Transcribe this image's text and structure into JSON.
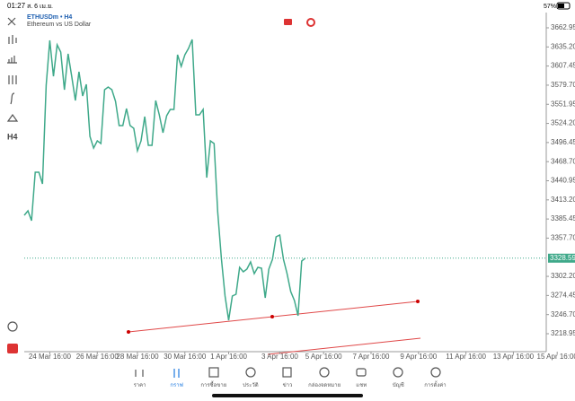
{
  "status_bar": {
    "time": "01:27",
    "date": "ส. 6 เม.ย.",
    "battery": "57%"
  },
  "chart_data": {
    "type": "line",
    "title": "ETHUSDm • H4",
    "subtitle": "Ethereum vs US Dollar",
    "series": [
      {
        "color": "#3fa98a",
        "values": [
          3390.8,
          3397.3,
          3383.0,
          3453.3,
          3453.3,
          3436.4,
          3579.6,
          3644.7,
          3592.6,
          3638.2,
          3627.8,
          3573.1,
          3625.2,
          3592.6,
          3557.5,
          3599.1,
          3564.0,
          3580.9,
          3505.4,
          3488.5,
          3498.9,
          3495.0,
          3573.1,
          3577.0,
          3573.1,
          3556.2,
          3521.0,
          3521.0,
          3545.8,
          3521.0,
          3517.1,
          3484.6,
          3498.9,
          3534.0,
          3492.4,
          3492.4,
          3557.5,
          3536.6,
          3510.6,
          3535.3,
          3544.5,
          3544.5,
          3623.9,
          3607.0,
          3623.9,
          3633.0,
          3646.0,
          3536.6,
          3536.6,
          3544.5,
          3445.5,
          3498.9,
          3495.0,
          3396.0,
          3328.3,
          3273.6,
          3238.5,
          3273.6,
          3276.2,
          3315.3,
          3308.8,
          3312.7,
          3323.1,
          3306.2,
          3315.3,
          3314.0,
          3271.0,
          3312.7,
          3327.0,
          3359.6,
          3362.2,
          3327.0,
          3306.2,
          3280.1,
          3267.1,
          3245.0,
          3324.4,
          3328.59
        ]
      }
    ],
    "last_price": 3328.59,
    "xlim": [
      0,
      143
    ],
    "xticks": [
      {
        "value": 7,
        "label": "24 Mar 16:00"
      },
      {
        "value": 20,
        "label": "26 Mar 16:00"
      },
      {
        "value": 31,
        "label": "28 Mar 16:00"
      },
      {
        "value": 44,
        "label": "30 Mar 16:00"
      },
      {
        "value": 56,
        "label": "1 Apr 16:00"
      },
      {
        "value": 70,
        "label": "3 Apr 16:00"
      },
      {
        "value": 82,
        "label": "5 Apr 16:00"
      },
      {
        "value": 95,
        "label": "7 Apr 16:00"
      },
      {
        "value": 108,
        "label": "9 Apr 16:00"
      },
      {
        "value": 121,
        "label": "11 Apr 16:00"
      },
      {
        "value": 134,
        "label": "13 Apr 16:00"
      },
      {
        "value": 146,
        "label": "15 Apr 16:00"
      }
    ],
    "ylim": [
      3192.9,
      3685.1
    ],
    "yticks": [
      3662.95,
      {
        "value": 3635.2,
        "label": "3635.20"
      },
      3607.45,
      {
        "value": 3579.7,
        "label": "3579.70"
      },
      3551.95,
      {
        "value": 3524.2,
        "label": "3524.20"
      },
      3496.45,
      {
        "value": 3468.7,
        "label": "3468.70"
      },
      3440.95,
      {
        "value": 3413.2,
        "label": "3413.20"
      },
      3385.45,
      {
        "value": 3357.7,
        "label": "3357.70"
      },
      {
        "value": 3302.2,
        "label": "3302.20"
      },
      3274.45,
      {
        "value": 3246.7,
        "label": "3246.70"
      },
      3218.95
    ]
  },
  "nav": {
    "items": [
      "ราคา",
      "กราฟ",
      "การซื้อขาย",
      "ประวัติ",
      "ข่าว",
      "กล่องจดหมาย",
      "แชท",
      "บัญชี",
      "การตั้งค่า"
    ]
  },
  "toolbar": {
    "timeframe": "H4"
  }
}
